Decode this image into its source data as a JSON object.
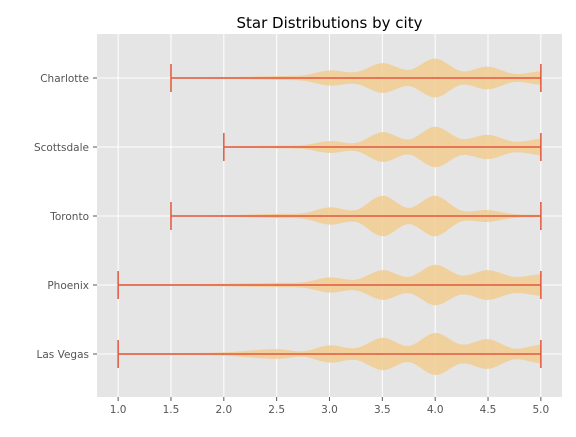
{
  "chart_data": {
    "type": "violin",
    "title": "Star Distributions by city",
    "xlabel": "",
    "ylabel": "",
    "xlim": [
      0.8,
      5.2
    ],
    "x_ticks": [
      "1.0",
      "1.5",
      "2.0",
      "2.5",
      "3.0",
      "3.5",
      "4.0",
      "4.5",
      "5.0"
    ],
    "grid": true,
    "orientation": "horizontal",
    "colors": {
      "plot_background": "#e5e5e5",
      "grid": "#ffffff",
      "violin_fill": "#f2cc8f",
      "whisker_line": "#e2583e",
      "tick_label": "#555555"
    },
    "categories": [
      "Charlotte",
      "Scottsdale",
      "Toronto",
      "Phoenix",
      "Las Vegas"
    ],
    "series": [
      {
        "category": "Charlotte",
        "min": 1.5,
        "max": 5.0,
        "density_x": [
          1.5,
          2.0,
          2.5,
          2.75,
          3.0,
          3.25,
          3.5,
          3.75,
          4.0,
          4.25,
          4.5,
          4.75,
          5.0
        ],
        "density": [
          0.02,
          0.03,
          0.07,
          0.1,
          0.28,
          0.22,
          0.55,
          0.3,
          0.72,
          0.25,
          0.42,
          0.15,
          0.25
        ]
      },
      {
        "category": "Scottsdale",
        "min": 2.0,
        "max": 5.0,
        "density_x": [
          2.0,
          2.5,
          2.75,
          3.0,
          3.25,
          3.5,
          3.75,
          4.0,
          4.25,
          4.5,
          4.75,
          5.0
        ],
        "density": [
          0.02,
          0.05,
          0.07,
          0.22,
          0.15,
          0.55,
          0.28,
          0.75,
          0.3,
          0.45,
          0.2,
          0.3
        ]
      },
      {
        "category": "Toronto",
        "min": 1.5,
        "max": 5.0,
        "density_x": [
          1.5,
          2.0,
          2.5,
          2.75,
          3.0,
          3.25,
          3.5,
          3.75,
          4.0,
          4.25,
          4.5,
          4.75,
          5.0
        ],
        "density": [
          0.02,
          0.03,
          0.08,
          0.1,
          0.32,
          0.22,
          0.75,
          0.3,
          0.75,
          0.2,
          0.22,
          0.07,
          0.05
        ]
      },
      {
        "category": "Phoenix",
        "min": 1.0,
        "max": 5.0,
        "density_x": [
          1.0,
          1.5,
          2.0,
          2.5,
          2.75,
          3.0,
          3.25,
          3.5,
          3.75,
          4.0,
          4.25,
          4.5,
          4.75,
          5.0
        ],
        "density": [
          0.03,
          0.03,
          0.05,
          0.08,
          0.1,
          0.28,
          0.2,
          0.55,
          0.3,
          0.75,
          0.35,
          0.55,
          0.3,
          0.4
        ]
      },
      {
        "category": "Las Vegas",
        "min": 1.0,
        "max": 5.0,
        "density_x": [
          1.0,
          1.5,
          2.0,
          2.5,
          2.75,
          3.0,
          3.25,
          3.5,
          3.75,
          4.0,
          4.25,
          4.5,
          4.75,
          5.0
        ],
        "density": [
          0.03,
          0.03,
          0.06,
          0.18,
          0.1,
          0.32,
          0.22,
          0.6,
          0.3,
          0.78,
          0.35,
          0.55,
          0.2,
          0.35
        ]
      }
    ]
  }
}
